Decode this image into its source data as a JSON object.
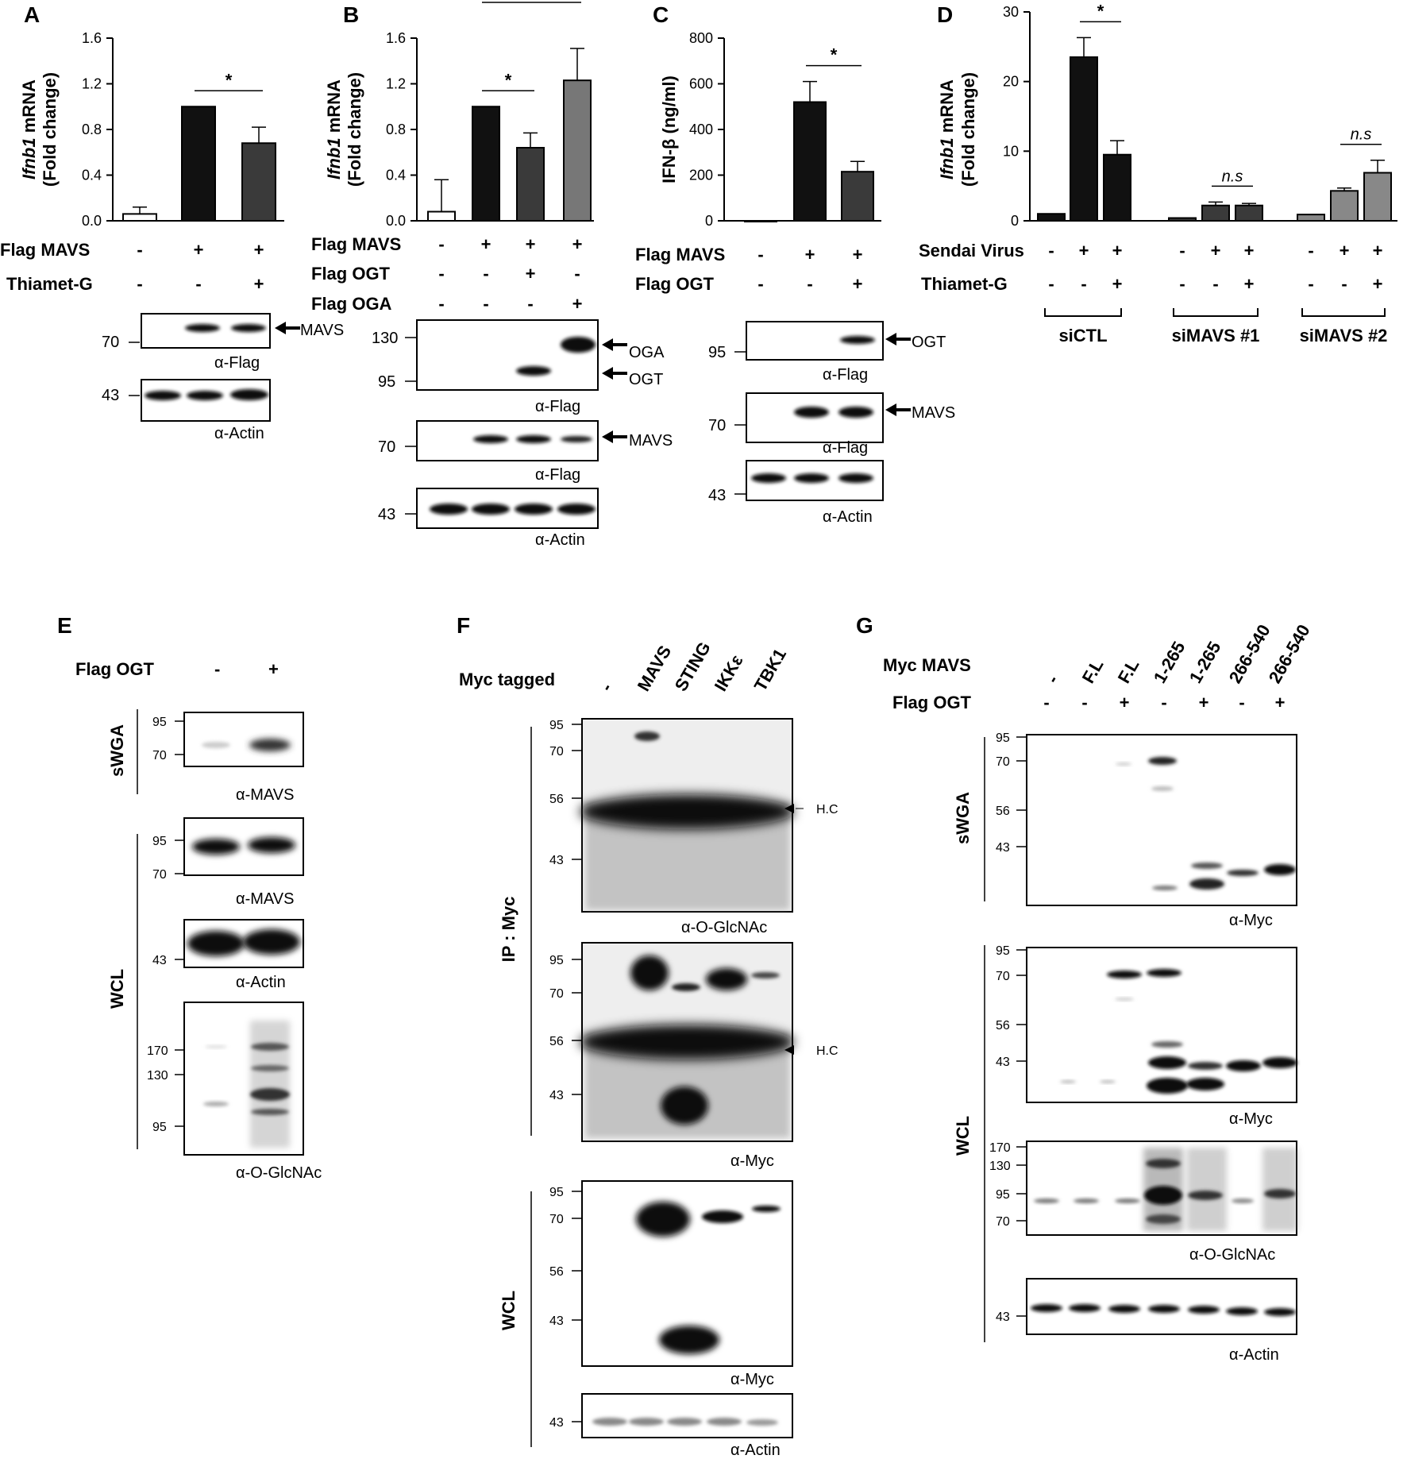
{
  "panels": [
    "A",
    "B",
    "C",
    "D",
    "E",
    "F",
    "G"
  ],
  "chart_data": [
    {
      "panel": "A",
      "type": "bar",
      "ylabel_italic": "Ifnb1",
      "ylabel_rest": " mRNA",
      "ylabel2": "(Fold change)",
      "yticks": [
        "0.0",
        "0.4",
        "0.8",
        "1.2",
        "1.6"
      ],
      "ylim": [
        0,
        1.6
      ],
      "values": [
        0.06,
        1.0,
        0.68
      ],
      "errors": [
        0.06,
        0.0,
        0.14
      ],
      "colors": [
        "#ffffff",
        "#111111",
        "#3a3a3a"
      ],
      "significance": [
        {
          "from": 1,
          "to": 2,
          "label": "*"
        }
      ],
      "conditions": [
        {
          "name": "Flag MAVS",
          "signs": [
            "-",
            "+",
            "+"
          ]
        },
        {
          "name": "Thiamet-G",
          "signs": [
            "-",
            "-",
            "+"
          ]
        }
      ]
    },
    {
      "panel": "B",
      "type": "bar",
      "ylabel_italic": "Ifnb1",
      "ylabel_rest": " mRNA",
      "ylabel2": "(Fold change)",
      "yticks": [
        "0.0",
        "0.4",
        "0.8",
        "1.2",
        "1.6"
      ],
      "ylim": [
        0,
        1.6
      ],
      "values": [
        0.08,
        1.0,
        0.64,
        1.23
      ],
      "errors": [
        0.28,
        0.0,
        0.13,
        0.28
      ],
      "colors": [
        "#ffffff",
        "#111111",
        "#3a3a3a",
        "#777777"
      ],
      "significance": [
        {
          "from": 1,
          "to": 2,
          "label": "*"
        },
        {
          "from": 1,
          "to": 3,
          "label": "*"
        }
      ],
      "conditions": [
        {
          "name": "Flag MAVS",
          "signs": [
            "-",
            "+",
            "+",
            "+"
          ]
        },
        {
          "name": "Flag OGT",
          "signs": [
            "-",
            "-",
            "+",
            "-"
          ]
        },
        {
          "name": "Flag OGA",
          "signs": [
            "-",
            "-",
            "-",
            "+"
          ]
        }
      ]
    },
    {
      "panel": "C",
      "type": "bar",
      "ylabel": "IFN-β (ng/ml)",
      "yticks": [
        "0",
        "200",
        "400",
        "600",
        "800"
      ],
      "ylim": [
        0,
        800
      ],
      "values": [
        0,
        520,
        215
      ],
      "errors": [
        0,
        90,
        45
      ],
      "colors": [
        "#ffffff",
        "#111111",
        "#3a3a3a"
      ],
      "significance": [
        {
          "from": 1,
          "to": 2,
          "label": "*"
        }
      ],
      "conditions": [
        {
          "name": "Flag MAVS",
          "signs": [
            "-",
            "+",
            "+"
          ]
        },
        {
          "name": "Flag OGT",
          "signs": [
            "-",
            "-",
            "+"
          ]
        }
      ]
    },
    {
      "panel": "D",
      "type": "bar",
      "ylabel_italic": "Ifnb1",
      "ylabel_rest": " mRNA",
      "ylabel2": "(Fold change)",
      "yticks": [
        "0",
        "10",
        "20",
        "30"
      ],
      "ylim": [
        0,
        30
      ],
      "groups": [
        "siCTL",
        "siMAVS #1",
        "siMAVS #2"
      ],
      "values": [
        [
          1.0,
          23.5,
          9.5
        ],
        [
          0.4,
          2.2,
          2.2
        ],
        [
          0.9,
          4.3,
          6.9
        ]
      ],
      "errors": [
        [
          0,
          2.8,
          2.0
        ],
        [
          0,
          0.5,
          0.3
        ],
        [
          0,
          0.4,
          1.8
        ]
      ],
      "colors": [
        [
          "#111111",
          "#111111",
          "#111111"
        ],
        [
          "#3a3a3a",
          "#3a3a3a",
          "#3a3a3a"
        ],
        [
          "#888888",
          "#888888",
          "#888888"
        ]
      ],
      "significance": [
        {
          "group": 0,
          "from": 1,
          "to": 2,
          "label": "*"
        },
        {
          "group": 1,
          "from": 1,
          "to": 2,
          "label": "n.s"
        },
        {
          "group": 2,
          "from": 1,
          "to": 2,
          "label": "n.s"
        }
      ],
      "conditions": [
        {
          "name": "Sendai Virus",
          "signs": [
            "-",
            "+",
            "+",
            "-",
            "+",
            "+",
            "-",
            "+",
            "+"
          ]
        },
        {
          "name": "Thiamet-G",
          "signs": [
            "-",
            "-",
            "+",
            "-",
            "-",
            "+",
            "-",
            "-",
            "+"
          ]
        }
      ]
    }
  ],
  "blots": {
    "A": {
      "mw": [
        "70",
        "43"
      ],
      "labels": [
        "α-Flag",
        "α-Actin"
      ],
      "arrows": [
        "MAVS"
      ]
    },
    "B": {
      "mw": [
        "130",
        "95",
        "70",
        "43"
      ],
      "labels": [
        "α-Flag",
        "α-Flag",
        "α-Actin"
      ],
      "arrows": [
        "OGA",
        "OGT",
        "MAVS"
      ]
    },
    "C": {
      "mw": [
        "95",
        "70",
        "43"
      ],
      "labels": [
        "α-Flag",
        "α-Flag",
        "α-Actin"
      ],
      "arrows": [
        "OGT",
        "MAVS"
      ]
    },
    "E": {
      "header": "Flag OGT",
      "signs": [
        "-",
        "+"
      ],
      "groups": [
        "sWGA",
        "WCL"
      ],
      "mw1": [
        "95",
        "70"
      ],
      "mw2": [
        "95",
        "70"
      ],
      "mw3": [
        "43"
      ],
      "mw4": [
        "170",
        "130",
        "95"
      ],
      "labels": [
        "α-MAVS",
        "α-MAVS",
        "α-Actin",
        "α-O-GlcNAc"
      ]
    },
    "F": {
      "header": "Myc tagged",
      "lanes": [
        "-",
        "MAVS",
        "STING",
        "IKKε",
        "TBK1"
      ],
      "groups": [
        "IP : Myc",
        "WCL"
      ],
      "mw1": [
        "95",
        "70",
        "56",
        "43"
      ],
      "mw2": [
        "95",
        "70",
        "56",
        "43"
      ],
      "mw3": [
        "95",
        "70",
        "56",
        "43"
      ],
      "mw4": [
        "43"
      ],
      "hc": "H.C",
      "labels": [
        "α-O-GlcNAc",
        "α-Myc",
        "α-Myc",
        "α-Actin"
      ]
    },
    "G": {
      "header": "Myc MAVS",
      "lanes": [
        "-",
        "F.L",
        "F.L",
        "1-265",
        "1-265",
        "266-540",
        "266-540"
      ],
      "sub_header": "Flag  OGT",
      "signs": [
        "-",
        "-",
        "+",
        "-",
        "+",
        "-",
        "+"
      ],
      "groups": [
        "sWGA",
        "WCL"
      ],
      "mw1": [
        "95",
        "70",
        "56",
        "43"
      ],
      "mw2": [
        "95",
        "70",
        "56",
        "43"
      ],
      "mw3": [
        "170",
        "130",
        "95",
        "70"
      ],
      "mw4": [
        "43"
      ],
      "labels": [
        "α-Myc",
        "α-Myc",
        "α-O-GlcNAc",
        "α-Actin"
      ]
    }
  }
}
